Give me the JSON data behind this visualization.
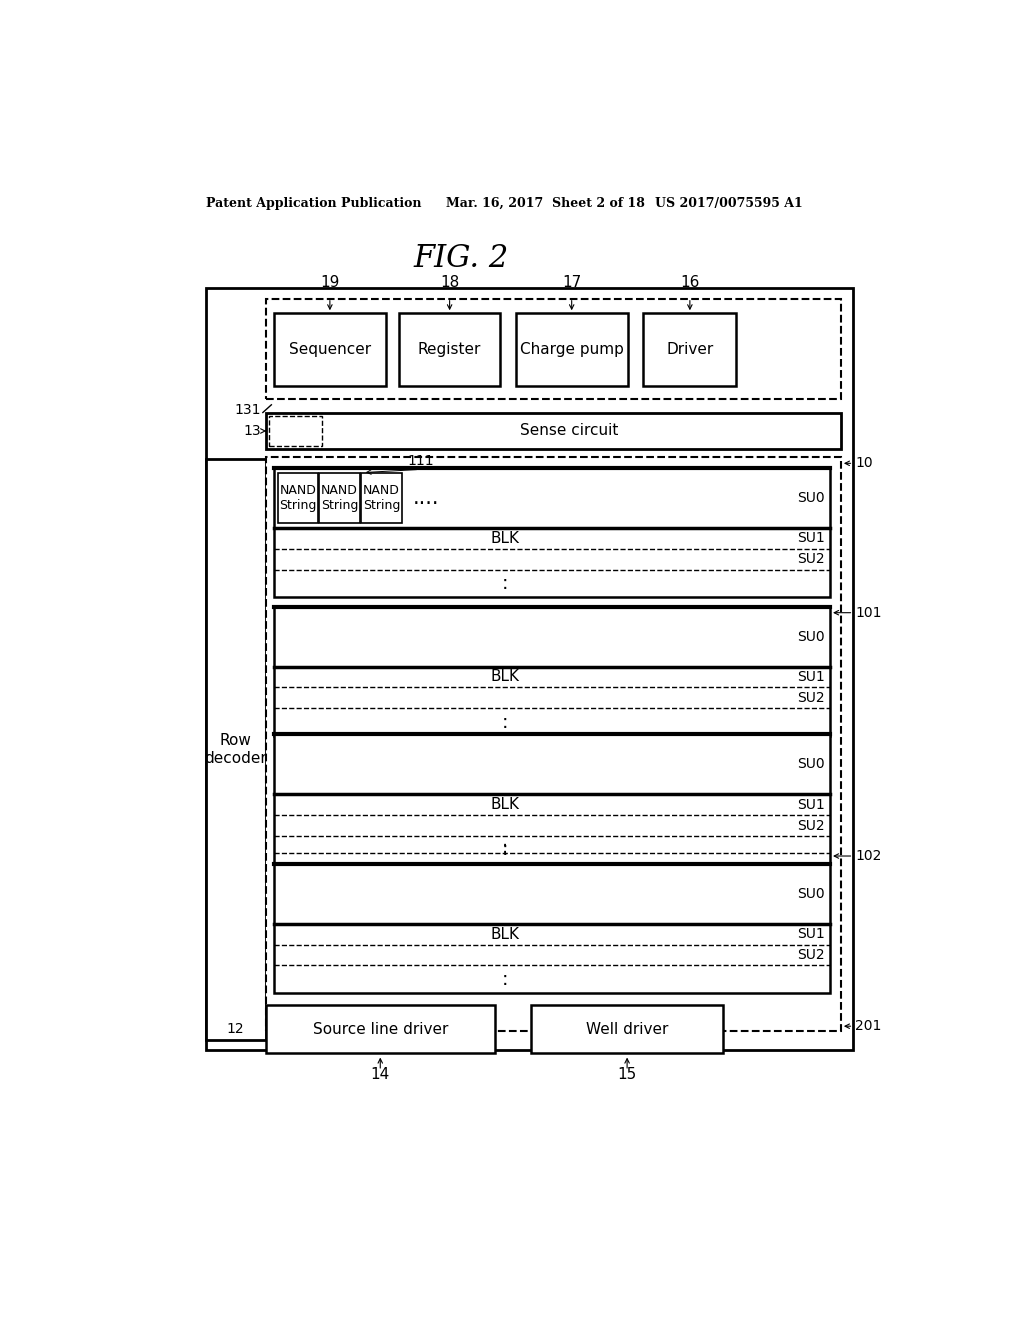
{
  "title": "FIG. 2",
  "header_left": "Patent Application Publication",
  "header_mid": "Mar. 16, 2017  Sheet 2 of 18",
  "header_right": "US 2017/0075595 A1",
  "bg_color": "#ffffff"
}
